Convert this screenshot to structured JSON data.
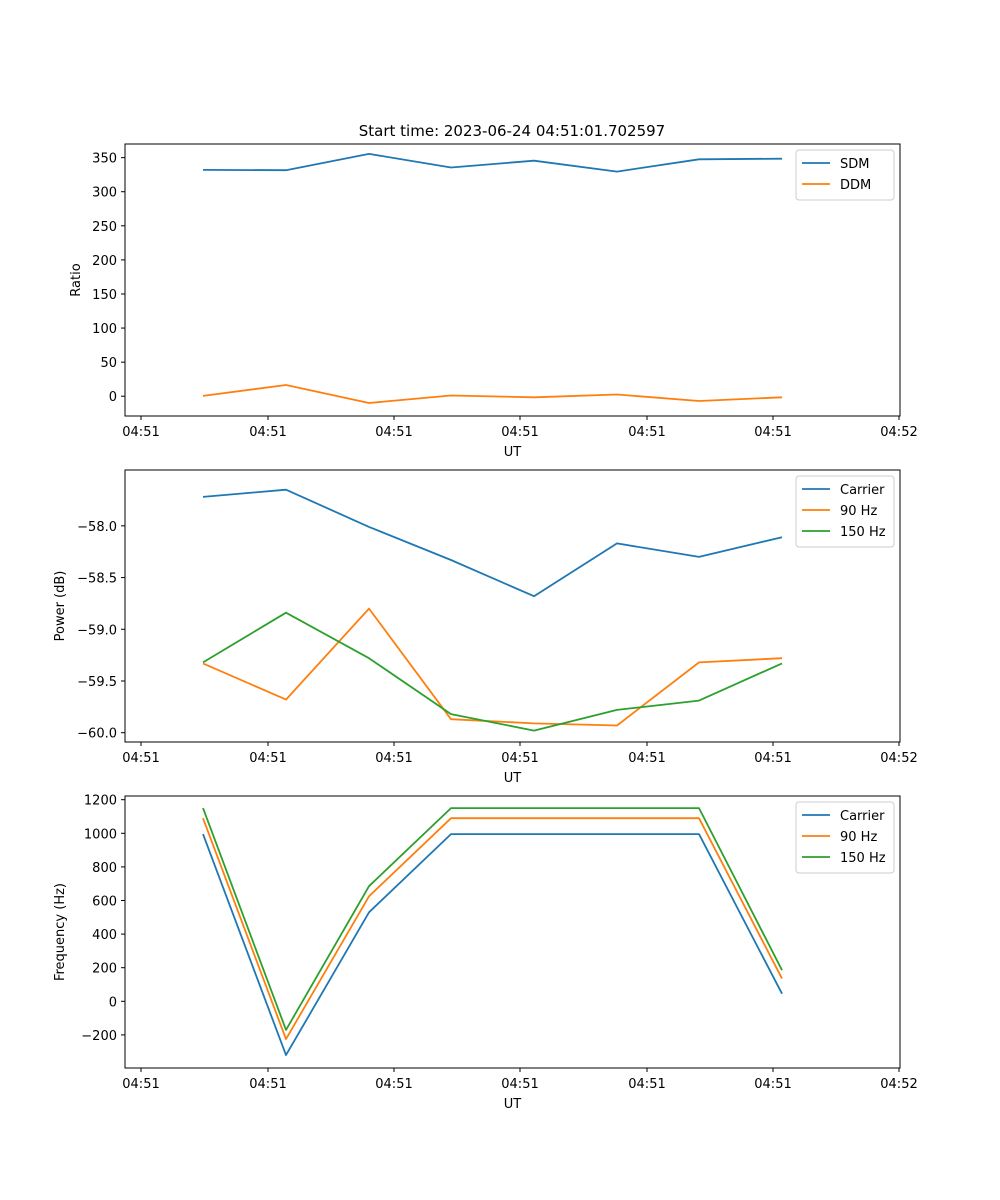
{
  "figure": {
    "title": "Start time: 2023-06-24 04:51:01.702597"
  },
  "chart_data": [
    {
      "type": "line",
      "xlabel": "UT",
      "ylabel": "Ratio",
      "x_tick_labels": [
        "04:51",
        "04:51",
        "04:51",
        "04:51",
        "04:51",
        "04:51",
        "04:52"
      ],
      "y_ticks": [
        0,
        50,
        100,
        150,
        200,
        250,
        300,
        350
      ],
      "y_tick_labels": [
        "0",
        "50",
        "100",
        "150",
        "200",
        "250",
        "300",
        "350"
      ],
      "ylim": [
        -29,
        370
      ],
      "legend_position": "top-right",
      "grid": false,
      "series": [
        {
          "name": "SDM",
          "color": "#1f77b4",
          "values": [
            332,
            331.5,
            355.5,
            335.5,
            345.5,
            329.5,
            347.5,
            348.5
          ]
        },
        {
          "name": "DDM",
          "color": "#ff7f0e",
          "values": [
            0.5,
            16.5,
            -10,
            1,
            -1.5,
            2.5,
            -7,
            -1.5
          ]
        }
      ]
    },
    {
      "type": "line",
      "xlabel": "UT",
      "ylabel": "Power (dB)",
      "x_tick_labels": [
        "04:51",
        "04:51",
        "04:51",
        "04:51",
        "04:51",
        "04:51",
        "04:52"
      ],
      "y_ticks": [
        -58.0,
        -58.5,
        -59.0,
        -59.5,
        -60.0
      ],
      "y_tick_labels": [
        "−58.0",
        "−58.5",
        "−59.0",
        "−59.5",
        "−60.0"
      ],
      "ylim": [
        -60.09,
        -57.46
      ],
      "legend_position": "top-right",
      "grid": false,
      "series": [
        {
          "name": "Carrier",
          "color": "#1f77b4",
          "values": [
            -57.72,
            -57.65,
            -58.01,
            -58.33,
            -58.68,
            -58.17,
            -58.3,
            -58.11
          ]
        },
        {
          "name": "90 Hz",
          "color": "#ff7f0e",
          "values": [
            -59.33,
            -59.68,
            -58.8,
            -59.87,
            -59.91,
            -59.93,
            -59.32,
            -59.28
          ]
        },
        {
          "name": "150 Hz",
          "color": "#2ca02c",
          "values": [
            -59.32,
            -58.84,
            -59.28,
            -59.82,
            -59.98,
            -59.78,
            -59.69,
            -59.33
          ]
        }
      ]
    },
    {
      "type": "line",
      "xlabel": "UT",
      "ylabel": "Frequency (Hz)",
      "x_tick_labels": [
        "04:51",
        "04:51",
        "04:51",
        "04:51",
        "04:51",
        "04:51",
        "04:52"
      ],
      "y_ticks": [
        -200,
        0,
        200,
        400,
        600,
        800,
        1000,
        1200
      ],
      "y_tick_labels": [
        "−200",
        "0",
        "200",
        "400",
        "600",
        "800",
        "1000",
        "1200"
      ],
      "ylim": [
        -397,
        1222
      ],
      "legend_position": "top-right",
      "grid": false,
      "series": [
        {
          "name": "Carrier",
          "color": "#1f77b4",
          "values": [
            995,
            -320,
            530,
            995,
            995,
            995,
            995,
            45
          ]
        },
        {
          "name": "90 Hz",
          "color": "#ff7f0e",
          "values": [
            1090,
            -225,
            625,
            1090,
            1090,
            1090,
            1090,
            135
          ]
        },
        {
          "name": "150 Hz",
          "color": "#2ca02c",
          "values": [
            1150,
            -170,
            685,
            1150,
            1150,
            1150,
            1150,
            185
          ]
        }
      ]
    }
  ]
}
